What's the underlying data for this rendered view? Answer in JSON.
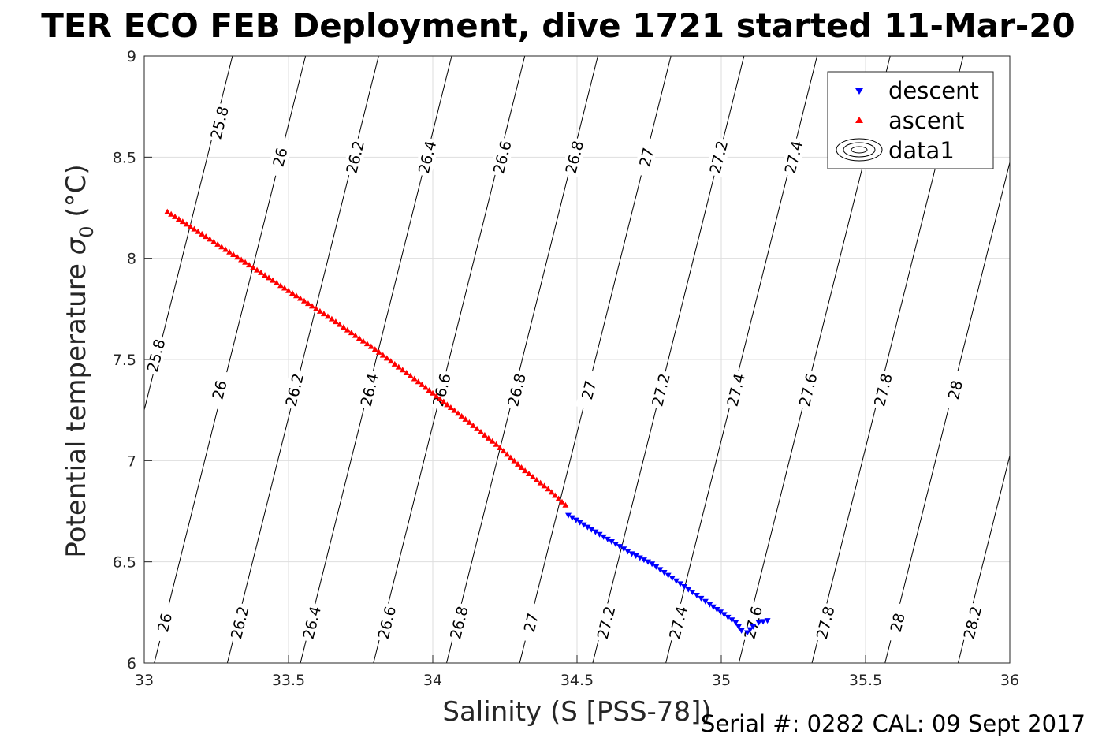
{
  "chart_data": {
    "type": "scatter",
    "title": "TER ECO FEB Deployment, dive 1721 started 11-Mar-20",
    "xlabel": "Salinity (S [PSS-78])",
    "ylabel_main": "Potential temperature ",
    "ylabel_sigma": "σ",
    "ylabel_sub": "0",
    "ylabel_unit": " (°C)",
    "xlim": [
      33,
      36
    ],
    "ylim": [
      6,
      9
    ],
    "x_ticks": [
      "33",
      "33.5",
      "34",
      "34.5",
      "35",
      "35.5",
      "36"
    ],
    "y_ticks": [
      "6",
      "6.5",
      "7",
      "7.5",
      "8",
      "8.5",
      "9"
    ],
    "grid": true,
    "legend_position": "top-right",
    "legend": [
      "descent",
      "ascent",
      "data1"
    ],
    "series": [
      {
        "name": "descent",
        "marker": "triangle-down",
        "color": "#0000ff",
        "points": [
          [
            34.47,
            6.73
          ],
          [
            34.55,
            6.66
          ],
          [
            34.62,
            6.6
          ],
          [
            34.69,
            6.54
          ],
          [
            34.76,
            6.49
          ],
          [
            34.83,
            6.42
          ],
          [
            34.9,
            6.35
          ],
          [
            34.96,
            6.29
          ],
          [
            35.01,
            6.24
          ],
          [
            35.05,
            6.2
          ],
          [
            35.07,
            6.16
          ],
          [
            35.09,
            6.15
          ],
          [
            35.11,
            6.18
          ],
          [
            35.13,
            6.2
          ],
          [
            35.16,
            6.21
          ]
        ]
      },
      {
        "name": "ascent",
        "marker": "triangle-up",
        "color": "#ff0000",
        "points": [
          [
            33.08,
            8.23
          ],
          [
            33.2,
            8.12
          ],
          [
            33.35,
            7.98
          ],
          [
            33.5,
            7.84
          ],
          [
            33.65,
            7.7
          ],
          [
            33.8,
            7.55
          ],
          [
            33.95,
            7.39
          ],
          [
            34.1,
            7.22
          ],
          [
            34.22,
            7.08
          ],
          [
            34.32,
            6.95
          ],
          [
            34.4,
            6.86
          ],
          [
            34.46,
            6.78
          ]
        ]
      }
    ],
    "contour_labels": [
      {
        "text": "25.8",
        "s": 33.26,
        "t": 8.67
      },
      {
        "text": "26",
        "s": 33.47,
        "t": 8.5
      },
      {
        "text": "26.2",
        "s": 33.73,
        "t": 8.5
      },
      {
        "text": "26.4",
        "s": 33.98,
        "t": 8.5
      },
      {
        "text": "26.6",
        "s": 34.24,
        "t": 8.5
      },
      {
        "text": "26.8",
        "s": 34.49,
        "t": 8.5
      },
      {
        "text": "27",
        "s": 34.74,
        "t": 8.5
      },
      {
        "text": "27.2",
        "s": 34.99,
        "t": 8.5
      },
      {
        "text": "27.4",
        "s": 35.25,
        "t": 8.5
      },
      {
        "text": "25.8",
        "s": 33.04,
        "t": 7.52
      },
      {
        "text": "26",
        "s": 33.26,
        "t": 7.35
      },
      {
        "text": "26.2",
        "s": 33.52,
        "t": 7.35
      },
      {
        "text": "26.4",
        "s": 33.78,
        "t": 7.35
      },
      {
        "text": "26.6",
        "s": 34.03,
        "t": 7.35
      },
      {
        "text": "26.8",
        "s": 34.29,
        "t": 7.35
      },
      {
        "text": "27",
        "s": 34.54,
        "t": 7.35
      },
      {
        "text": "27.2",
        "s": 34.79,
        "t": 7.35
      },
      {
        "text": "27.4",
        "s": 35.05,
        "t": 7.35
      },
      {
        "text": "27.6",
        "s": 35.3,
        "t": 7.35
      },
      {
        "text": "27.8",
        "s": 35.56,
        "t": 7.35
      },
      {
        "text": "28",
        "s": 35.81,
        "t": 7.35
      },
      {
        "text": "26",
        "s": 33.07,
        "t": 6.2
      },
      {
        "text": "26.2",
        "s": 33.33,
        "t": 6.2
      },
      {
        "text": "26.4",
        "s": 33.58,
        "t": 6.2
      },
      {
        "text": "26.6",
        "s": 33.84,
        "t": 6.2
      },
      {
        "text": "26.8",
        "s": 34.09,
        "t": 6.2
      },
      {
        "text": "27",
        "s": 34.34,
        "t": 6.2
      },
      {
        "text": "27.2",
        "s": 34.6,
        "t": 6.2
      },
      {
        "text": "27.4",
        "s": 34.85,
        "t": 6.2
      },
      {
        "text": "27.6",
        "s": 35.11,
        "t": 6.2
      },
      {
        "text": "27.8",
        "s": 35.36,
        "t": 6.2
      },
      {
        "text": "28",
        "s": 35.61,
        "t": 6.2
      },
      {
        "text": "28.2",
        "s": 35.87,
        "t": 6.2
      }
    ],
    "footer": "Serial #: 0282  CAL: 09 Sept 2017"
  }
}
